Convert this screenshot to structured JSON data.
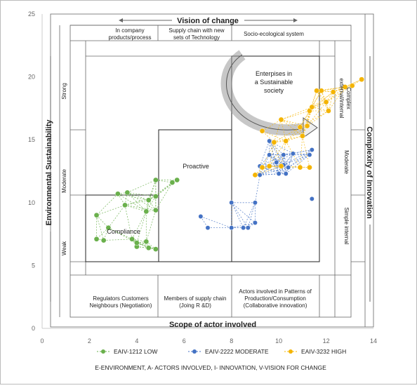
{
  "chart_data": {
    "type": "scatter",
    "xlim": [
      0,
      14
    ],
    "ylim": [
      0,
      25
    ],
    "x_ticks": [
      0,
      2,
      4,
      6,
      8,
      10,
      12,
      14
    ],
    "y_ticks": [
      0,
      5,
      10,
      15,
      20,
      25
    ],
    "top_axis_label": "Vision of change",
    "bottom_axis_label": "Scope of actor involved",
    "left_axis_label": "Environmental Sustainability",
    "right_axis_label": "Complexity of Innovation",
    "top_categories": [
      "In company products/process",
      "Supply chain with new sets of Technology",
      "Socio-ecological system"
    ],
    "bottom_categories": [
      [
        "Regulators Customers",
        "Neighbours (Negotiation)"
      ],
      [
        "Members of supply chain",
        "(Joing R &D)"
      ],
      [
        "Actors involved in Patterns of",
        "Production/Consumption",
        "(Collaborative innovation)"
      ]
    ],
    "left_levels": [
      "Weak",
      "Moderate",
      "Strong"
    ],
    "right_levels": [
      "Simple internal",
      "Moderate",
      "Complex external/internal"
    ],
    "zone_labels": {
      "compliance": "Compliance",
      "proactive": "Proactive",
      "sustainable": [
        "Enterpises in",
        "a Sustainable",
        "society"
      ]
    },
    "legend": "bottom",
    "footnote": "E-ENVIRONMENT, A- ACTORS INVOLVED, I- INNOVATION, V-VISION FOR CHANGE",
    "series": [
      {
        "name": "EAIV-1212 LOW",
        "color": "#6ab04c",
        "points": [
          [
            3.2,
            10.7
          ],
          [
            3.6,
            10.8
          ],
          [
            4.8,
            11.8
          ],
          [
            5.5,
            11.6
          ],
          [
            5.7,
            11.8
          ],
          [
            2.3,
            9.0
          ],
          [
            2.8,
            8.0
          ],
          [
            3.5,
            9.8
          ],
          [
            4.5,
            10.2
          ],
          [
            4.8,
            10.5
          ],
          [
            2.3,
            7.1
          ],
          [
            2.6,
            7.0
          ],
          [
            3.8,
            7.1
          ],
          [
            4.4,
            6.9
          ],
          [
            4.4,
            9.3
          ],
          [
            4.8,
            9.4
          ],
          [
            4.0,
            6.5
          ],
          [
            4.5,
            6.4
          ],
          [
            4.8,
            6.3
          ],
          [
            4.0,
            6.8
          ]
        ]
      },
      {
        "name": "EAIV-2222 MODERATE",
        "color": "#4472c4",
        "points": [
          [
            6.7,
            8.9
          ],
          [
            7.0,
            8.0
          ],
          [
            8.0,
            10.0
          ],
          [
            8.0,
            8.0
          ],
          [
            8.5,
            8.0
          ],
          [
            9.0,
            8.4
          ],
          [
            9.0,
            10.0
          ],
          [
            9.2,
            12.2
          ],
          [
            9.2,
            12.9
          ],
          [
            9.9,
            13.2
          ],
          [
            10.2,
            13.0
          ],
          [
            10.4,
            12.8
          ],
          [
            9.6,
            13.8
          ],
          [
            10.2,
            13.8
          ],
          [
            10.3,
            12.3
          ],
          [
            10.0,
            12.3
          ],
          [
            9.6,
            14.9
          ],
          [
            11.3,
            13.8
          ],
          [
            11.4,
            14.2
          ],
          [
            11.4,
            10.3
          ],
          [
            8.7,
            8.0
          ],
          [
            10.6,
            13.9
          ]
        ]
      },
      {
        "name": "EAIV-3232 HIGH",
        "color": "#f4b400",
        "points": [
          [
            9.0,
            12.2
          ],
          [
            9.8,
            14.8
          ],
          [
            10.3,
            14.9
          ],
          [
            11.0,
            15.3
          ],
          [
            11.2,
            16.1
          ],
          [
            11.3,
            17.3
          ],
          [
            11.4,
            17.6
          ],
          [
            11.6,
            18.9
          ],
          [
            11.8,
            18.9
          ],
          [
            12.0,
            18.0
          ],
          [
            12.1,
            17.3
          ],
          [
            12.3,
            18.8
          ],
          [
            12.8,
            19.2
          ],
          [
            13.1,
            19.3
          ],
          [
            13.5,
            19.8
          ],
          [
            9.3,
            12.8
          ],
          [
            9.6,
            12.9
          ],
          [
            10.1,
            12.9
          ],
          [
            10.9,
            12.8
          ],
          [
            11.3,
            12.8
          ],
          [
            9.3,
            15.7
          ],
          [
            10.1,
            16.6
          ],
          [
            10.9,
            16.0
          ]
        ]
      }
    ]
  }
}
